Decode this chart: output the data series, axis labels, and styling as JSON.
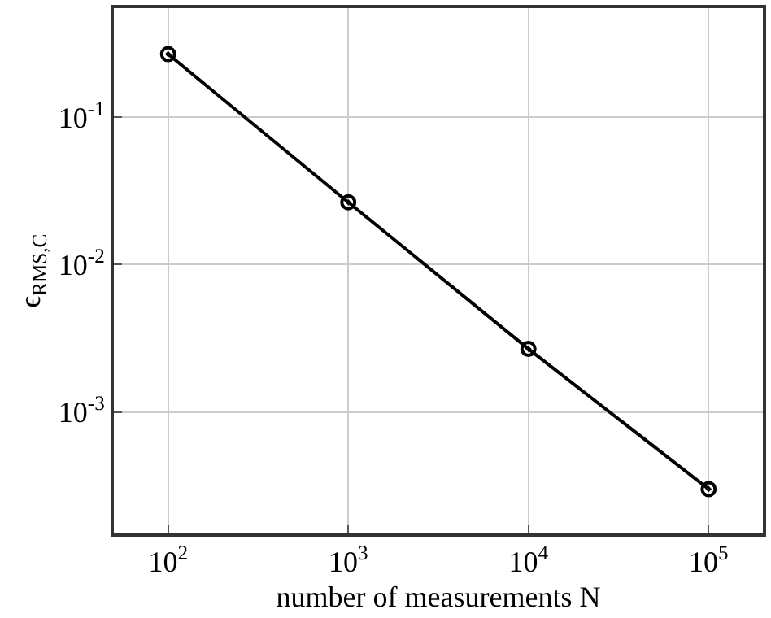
{
  "chart_data": {
    "type": "line",
    "xlabel": "number of measurements N",
    "ylabel": "ϵ$_{RMS,C}$",
    "x": [
      100,
      1000,
      10000,
      100000
    ],
    "series": [
      {
        "color": "#000000",
        "values": [
          0.268,
          0.0265,
          0.00268,
          0.0003
        ]
      }
    ],
    "log": "xy",
    "xlim": [
      50,
      200000
    ],
    "ylim": [
      0.00015,
      0.55
    ],
    "xticks": [
      {
        "value": 100,
        "label": "10$^{2}$"
      },
      {
        "value": 1000,
        "label": "10$^{3}$"
      },
      {
        "value": 10000,
        "label": "10$^{4}$"
      },
      {
        "value": 100000,
        "label": "10$^{5}$"
      }
    ],
    "yticks": [
      {
        "value": 0.001,
        "label": "10$^{-3}$"
      },
      {
        "value": 0.01,
        "label": "10$^{-2}$"
      },
      {
        "value": 0.1,
        "label": "10$^{-1}$"
      }
    ],
    "grid": true,
    "marker": "circle",
    "line_style": "solid"
  }
}
